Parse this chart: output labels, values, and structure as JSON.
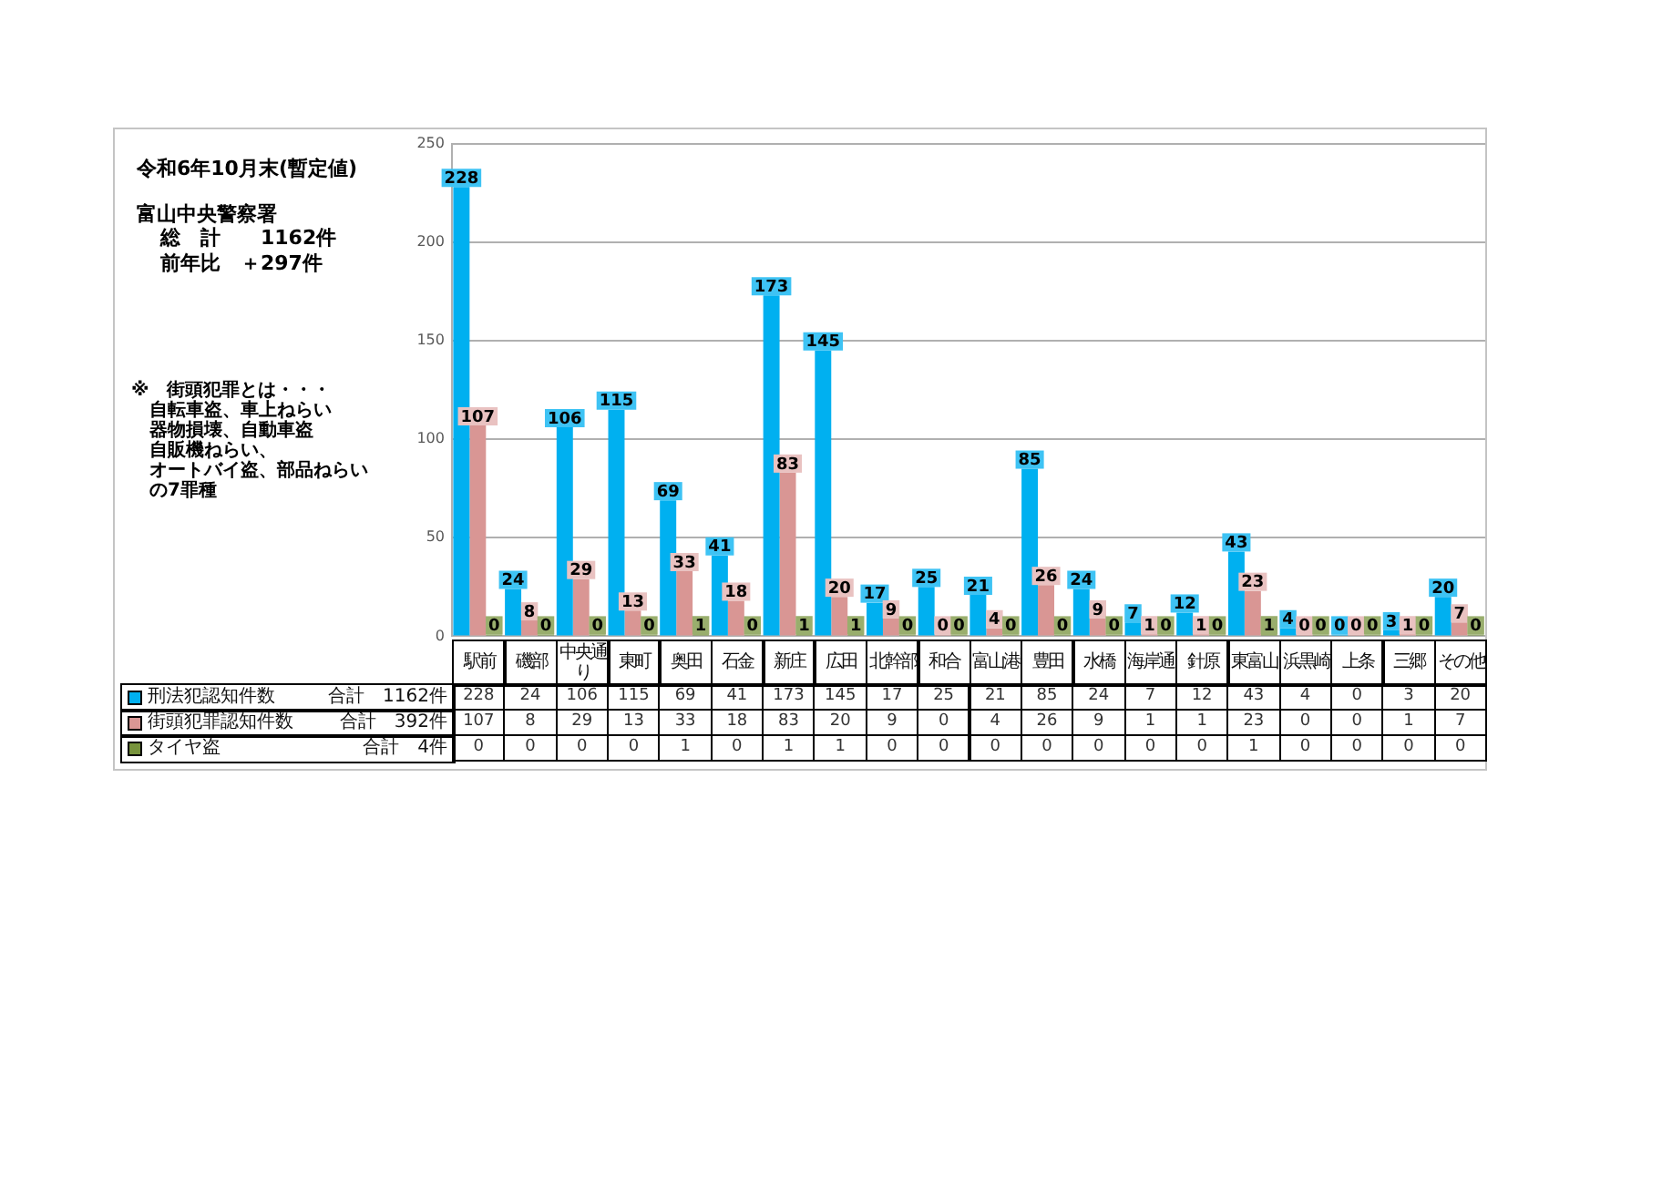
{
  "chart_data": [
    {
      "type": "bar",
      "title": "令和6年10月末(暫定値)",
      "annotations": [
        "富山中央警察署",
        "総　計　　1162件",
        "前年比　＋297件",
        "※　街頭犯罪とは・・・",
        "自転車盗、車上ねらい",
        "器物損壊、自動車盗",
        "自販機ねらい、",
        "オートバイ盗、部品ねらい",
        "の7罪種",
        "合計　1162件",
        "合計　392件",
        "合計　4件"
      ],
      "categories": [
        "駅前",
        "磯部",
        "中央通り",
        "東町",
        "奥田",
        "石金",
        "新庄",
        "広田",
        "北幹部",
        "和合",
        "富山港",
        "豊田",
        "水橋",
        "海岸通",
        "針原",
        "東富山",
        "浜黒崎",
        "上条",
        "三郷",
        "その他"
      ],
      "series": [
        {
          "name": "刑法犯認知件数",
          "color": "#00b0f0",
          "values": [
            228,
            24,
            106,
            115,
            69,
            41,
            173,
            145,
            17,
            25,
            21,
            85,
            24,
            7,
            12,
            43,
            4,
            0,
            3,
            20
          ],
          "value_labels": [
            "228",
            "24",
            "106",
            "115",
            "69",
            "41",
            "173",
            "145",
            "17",
            "25",
            "21",
            "85",
            "24",
            "7",
            "12",
            "43",
            "4",
            "0",
            "3",
            "20"
          ]
        },
        {
          "name": "街頭犯罪認知件数",
          "color": "#d99694",
          "values": [
            107,
            8,
            29,
            13,
            33,
            18,
            83,
            20,
            9,
            0,
            4,
            26,
            9,
            1,
            1,
            23,
            0,
            0,
            1,
            7
          ],
          "value_labels": [
            "107",
            "8",
            "29",
            "13",
            "33",
            "18",
            "83",
            "20",
            "9",
            "0",
            "4",
            "26",
            "9",
            "1",
            "1",
            "23",
            "0",
            "0",
            "1",
            "7"
          ]
        },
        {
          "name": "タイヤ盗",
          "color": "#77933c",
          "values": [
            0,
            0,
            0,
            0,
            1,
            0,
            1,
            1,
            0,
            0,
            0,
            0,
            0,
            0,
            0,
            1,
            0,
            0,
            0,
            0
          ],
          "value_labels": [
            "0",
            "0",
            "0",
            "0",
            "1",
            "0",
            "1",
            "1",
            "0",
            "0",
            "0",
            "0",
            "0",
            "0",
            "0",
            "1",
            "0",
            "0",
            "0",
            "0"
          ]
        }
      ],
      "ylim": [
        0,
        250
      ],
      "yticks": [
        0,
        50,
        100,
        150,
        200,
        250
      ],
      "grid": "y",
      "legend": "bottom left"
    },
    {
      "type": "other",
      "annotations": [
        "228",
        "24",
        "106",
        "115",
        "69",
        "41",
        "173",
        "145",
        "17",
        "25",
        "21",
        "85",
        "24",
        "7",
        "12",
        "43",
        "4",
        "0",
        "3",
        "20",
        "107",
        "8",
        "29",
        "13",
        "33",
        "18",
        "83",
        "20",
        "9",
        "0",
        "4",
        "26",
        "9",
        "1",
        "1",
        "23",
        "0",
        "0",
        "1",
        "7",
        "0",
        "0",
        "0",
        "0",
        "1",
        "0",
        "1",
        "1",
        "0",
        "0",
        "0",
        "0",
        "0",
        "0",
        "0",
        "1",
        "0",
        "0",
        "0",
        "0"
      ]
    }
  ]
}
